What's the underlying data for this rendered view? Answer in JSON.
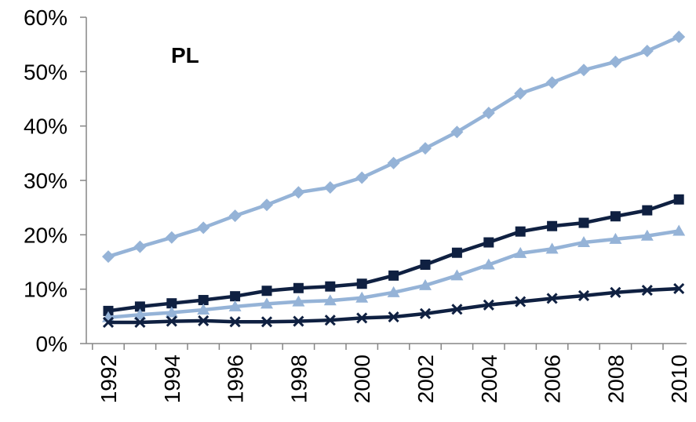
{
  "chart_data": {
    "type": "line",
    "label": "PL",
    "x": [
      1992,
      1993,
      1994,
      1995,
      1996,
      1997,
      1998,
      1999,
      2000,
      2001,
      2002,
      2003,
      2004,
      2005,
      2006,
      2007,
      2008,
      2009,
      2010
    ],
    "x_tick_labels": [
      "1992",
      "1994",
      "1996",
      "1998",
      "2000",
      "2002",
      "2004",
      "2006",
      "2008",
      "2010"
    ],
    "y_tick_labels": [
      "0%",
      "10%",
      "20%",
      "30%",
      "40%",
      "50%",
      "60%"
    ],
    "ylim": [
      0,
      60
    ],
    "y_unit": "%",
    "grid": false,
    "series": [
      {
        "marker": "diamond",
        "color": "#95b3d7",
        "values": [
          16,
          17.8,
          19.5,
          21.3,
          23.5,
          25.5,
          27.8,
          28.7,
          30.5,
          33.2,
          35.9,
          38.9,
          42.4,
          46.0,
          48.0,
          50.3,
          51.8,
          53.8,
          56.4
        ]
      },
      {
        "marker": "square",
        "color": "#0f2041",
        "values": [
          6.0,
          6.8,
          7.4,
          8.0,
          8.7,
          9.7,
          10.2,
          10.5,
          11.0,
          12.5,
          14.5,
          16.7,
          18.6,
          20.6,
          21.6,
          22.2,
          23.4,
          24.5,
          26.5
        ]
      },
      {
        "marker": "triangle",
        "color": "#95b3d7",
        "values": [
          4.8,
          5.3,
          5.7,
          6.2,
          6.8,
          7.3,
          7.7,
          7.9,
          8.4,
          9.4,
          10.7,
          12.5,
          14.5,
          16.6,
          17.4,
          18.6,
          19.2,
          19.8,
          20.7
        ]
      },
      {
        "marker": "x",
        "color": "#0f2041",
        "values": [
          3.9,
          3.9,
          4.1,
          4.2,
          4.0,
          4.0,
          4.1,
          4.3,
          4.7,
          4.9,
          5.5,
          6.3,
          7.1,
          7.7,
          8.3,
          8.8,
          9.4,
          9.8,
          10.1
        ]
      }
    ]
  }
}
